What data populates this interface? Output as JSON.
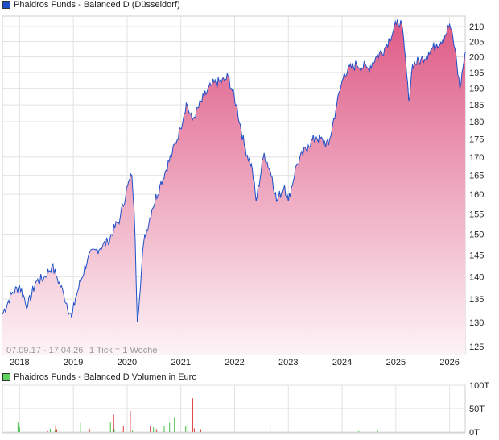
{
  "title": "Phaidros Funds - Balanced D (Düsseldorf)",
  "volume_title": "Phaidros Funds - Balanced D Volumen in Euro",
  "range_label": "07.09.17 - 17.04.26",
  "tick_label": "1 Tick = 1 Woche",
  "colors": {
    "line": "#1f4fc8",
    "fill_top": "#e0608a",
    "fill_bottom": "#fdf3f6",
    "vol_up": "#44c044",
    "vol_down": "#d83c3c",
    "price_swatch": "#1f4fc8",
    "volume_swatch": "#5fd35f"
  },
  "chart_data": [
    {
      "type": "area",
      "title": "Phaidros Funds - Balanced D (Düsseldorf)",
      "yscale": "log",
      "ylim": [
        123,
        214
      ],
      "xlim": [
        2017.68,
        2026.29
      ],
      "x_ticks": [
        {
          "v": 2018,
          "label": "2018"
        },
        {
          "v": 2019,
          "label": "2019"
        },
        {
          "v": 2020,
          "label": "2020"
        },
        {
          "v": 2021,
          "label": "2021"
        },
        {
          "v": 2022,
          "label": "2022"
        },
        {
          "v": 2023,
          "label": "2023"
        },
        {
          "v": 2024,
          "label": "2024"
        },
        {
          "v": 2025,
          "label": "2025"
        },
        {
          "v": 2026,
          "label": "2026"
        }
      ],
      "y_ticks": [
        {
          "v": 125,
          "label": "125"
        },
        {
          "v": 130,
          "label": "130"
        },
        {
          "v": 135,
          "label": "135"
        },
        {
          "v": 140,
          "label": "140"
        },
        {
          "v": 145,
          "label": "145"
        },
        {
          "v": 150,
          "label": "150"
        },
        {
          "v": 155,
          "label": "155"
        },
        {
          "v": 160,
          "label": "160"
        },
        {
          "v": 165,
          "label": "165"
        },
        {
          "v": 170,
          "label": "170"
        },
        {
          "v": 175,
          "label": "175"
        },
        {
          "v": 180,
          "label": "180"
        },
        {
          "v": 185,
          "label": "185"
        },
        {
          "v": 190,
          "label": "190"
        },
        {
          "v": 195,
          "label": "195"
        },
        {
          "v": 200,
          "label": "200"
        },
        {
          "v": 205,
          "label": "205"
        },
        {
          "v": 210,
          "label": "210"
        }
      ],
      "points": [
        [
          2017.68,
          131.7
        ],
        [
          2017.85,
          136.1
        ],
        [
          2018.0,
          137.9
        ],
        [
          2018.15,
          133.4
        ],
        [
          2018.3,
          138.8
        ],
        [
          2018.45,
          139.7
        ],
        [
          2018.6,
          142.4
        ],
        [
          2018.7,
          139.7
        ],
        [
          2018.82,
          136.1
        ],
        [
          2018.97,
          130.9
        ],
        [
          2019.04,
          135.2
        ],
        [
          2019.27,
          144.3
        ],
        [
          2019.42,
          146.2
        ],
        [
          2019.64,
          148.1
        ],
        [
          2019.87,
          154.1
        ],
        [
          2020.01,
          162.3
        ],
        [
          2020.09,
          164.9
        ],
        [
          2020.13,
          156.1
        ],
        [
          2020.19,
          130.0
        ],
        [
          2020.31,
          148.1
        ],
        [
          2020.46,
          156.1
        ],
        [
          2020.61,
          162.3
        ],
        [
          2020.84,
          171.1
        ],
        [
          2020.99,
          178.0
        ],
        [
          2021.1,
          185.5
        ],
        [
          2021.21,
          180.3
        ],
        [
          2021.43,
          187.5
        ],
        [
          2021.58,
          191.2
        ],
        [
          2021.81,
          192.4
        ],
        [
          2021.88,
          193.7
        ],
        [
          2022.03,
          185.0
        ],
        [
          2022.18,
          173.3
        ],
        [
          2022.33,
          166.6
        ],
        [
          2022.4,
          158.2
        ],
        [
          2022.55,
          171.1
        ],
        [
          2022.7,
          164.5
        ],
        [
          2022.78,
          158.2
        ],
        [
          2022.93,
          162.3
        ],
        [
          2023.0,
          158.2
        ],
        [
          2023.15,
          167.7
        ],
        [
          2023.37,
          173.3
        ],
        [
          2023.52,
          175.6
        ],
        [
          2023.75,
          173.3
        ],
        [
          2023.9,
          185.0
        ],
        [
          2024.04,
          194.9
        ],
        [
          2024.27,
          197.5
        ],
        [
          2024.49,
          196.2
        ],
        [
          2024.64,
          200.1
        ],
        [
          2024.79,
          202.7
        ],
        [
          2025.01,
          210.8
        ],
        [
          2025.09,
          212.2
        ],
        [
          2025.16,
          202.7
        ],
        [
          2025.24,
          186.2
        ],
        [
          2025.31,
          197.5
        ],
        [
          2025.46,
          198.8
        ],
        [
          2025.61,
          201.4
        ],
        [
          2025.76,
          204.1
        ],
        [
          2025.91,
          206.8
        ],
        [
          2026.0,
          210.8
        ],
        [
          2026.1,
          202.7
        ],
        [
          2026.19,
          189.9
        ],
        [
          2026.29,
          201.4
        ]
      ]
    },
    {
      "type": "bar",
      "title": "Phaidros Funds - Balanced D Volumen in Euro",
      "ylim": [
        0,
        100
      ],
      "y_ticks": [
        {
          "v": 0,
          "label": "0T"
        },
        {
          "v": 50,
          "label": "50T"
        },
        {
          "v": 100,
          "label": "100T"
        }
      ],
      "bars": [
        [
          2017.97,
          20,
          "up"
        ],
        [
          2018.0,
          10,
          "up"
        ],
        [
          2018.52,
          2,
          "down"
        ],
        [
          2018.57,
          7,
          "up"
        ],
        [
          2018.66,
          4,
          "up"
        ],
        [
          2018.67,
          12,
          "down"
        ],
        [
          2018.69,
          6,
          "down"
        ],
        [
          2018.75,
          20,
          "down"
        ],
        [
          2019.13,
          20,
          "up"
        ],
        [
          2019.3,
          7,
          "down"
        ],
        [
          2019.69,
          20,
          "up"
        ],
        [
          2019.75,
          37,
          "down"
        ],
        [
          2019.76,
          7,
          "up"
        ],
        [
          2019.93,
          12,
          "down"
        ],
        [
          2020.06,
          45,
          "down"
        ],
        [
          2020.1,
          3,
          "up"
        ],
        [
          2020.43,
          12,
          "down"
        ],
        [
          2020.49,
          10,
          "up"
        ],
        [
          2020.52,
          8,
          "up"
        ],
        [
          2020.55,
          6,
          "down"
        ],
        [
          2020.69,
          12,
          "up"
        ],
        [
          2020.79,
          20,
          "up"
        ],
        [
          2020.88,
          30,
          "up"
        ],
        [
          2021.09,
          12,
          "up"
        ],
        [
          2021.13,
          20,
          "up"
        ],
        [
          2021.22,
          72,
          "down"
        ],
        [
          2021.25,
          8,
          "down"
        ],
        [
          2021.37,
          6,
          "down"
        ],
        [
          2022.66,
          14,
          "down"
        ],
        [
          2024.31,
          2,
          "up"
        ],
        [
          2024.66,
          3,
          "up"
        ]
      ]
    }
  ]
}
